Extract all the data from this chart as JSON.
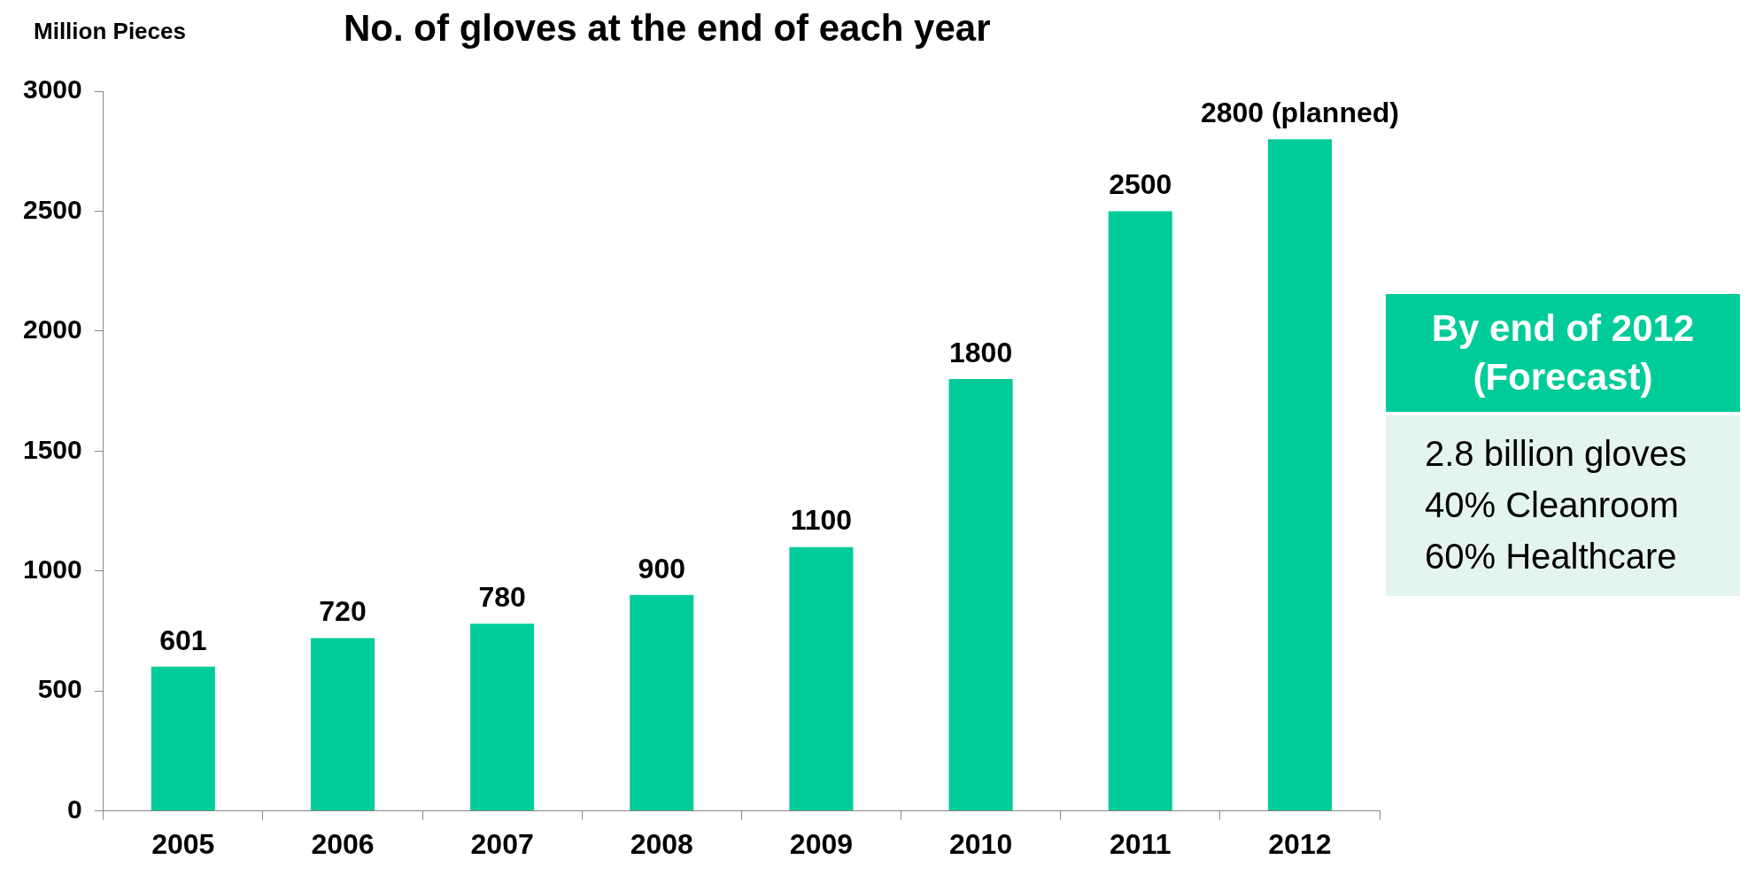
{
  "chart_data": {
    "type": "bar",
    "title": "No. of gloves at the end of each year",
    "ylabel": "Million Pieces",
    "categories": [
      "2005",
      "2006",
      "2007",
      "2008",
      "2009",
      "2010",
      "2011",
      "2012"
    ],
    "values": [
      601,
      720,
      780,
      900,
      1100,
      1800,
      2500,
      2800
    ],
    "value_labels": [
      "601",
      "720",
      "780",
      "900",
      "1100",
      "1800",
      "2500",
      "2800 (planned)"
    ],
    "color": "#00cc99",
    "ylim": [
      0,
      3000
    ],
    "yticks": [
      0,
      500,
      1000,
      1500,
      2000,
      2500,
      3000
    ],
    "grid": false,
    "annotations": [
      "By end of 2012 (Forecast)",
      "2.8 billion gloves",
      "40% Cleanroom",
      "60% Healthcare"
    ]
  }
}
